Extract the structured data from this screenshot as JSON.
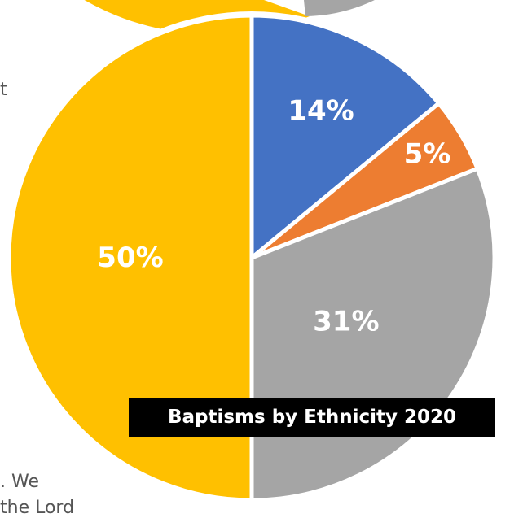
{
  "background_text": {
    "fragment_1": "t",
    "fragment_2": ". We",
    "fragment_3": "the Lord"
  },
  "chart_data": {
    "type": "pie",
    "title": "Baptisms by Ethnicity 2020",
    "slices": [
      {
        "label": "14%",
        "value": 14,
        "color": "#4472c4"
      },
      {
        "label": "5%",
        "value": 5,
        "color": "#ed7d31"
      },
      {
        "label": "31%",
        "value": 31,
        "color": "#a5a5a5"
      },
      {
        "label": "50%",
        "value": 50,
        "color": "#ffc000"
      }
    ],
    "start": "top, clockwise",
    "label_color": "#ffffff",
    "edge_color": "#ffffff"
  }
}
